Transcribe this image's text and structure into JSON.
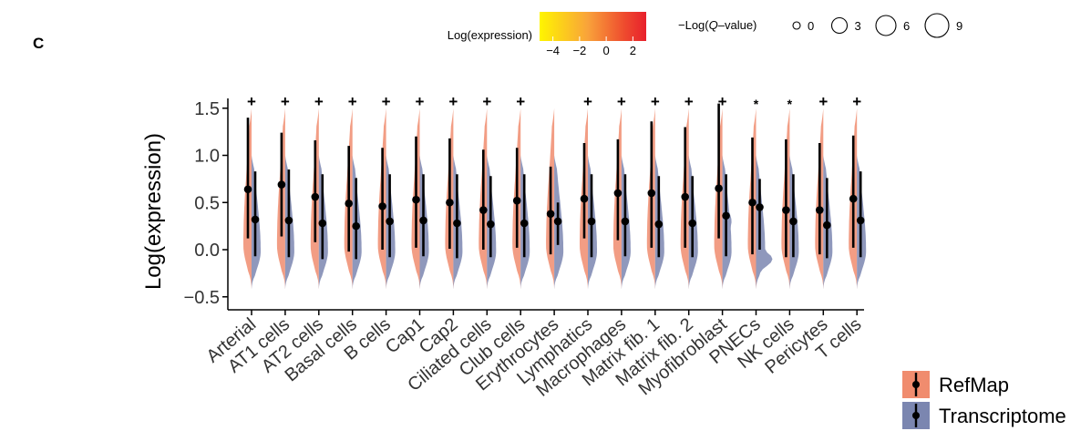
{
  "panel_label": "C",
  "chart_data": {
    "type": "violin",
    "ylabel": "Log(expression)",
    "ylim": [
      -0.6,
      1.65
    ],
    "yticks": [
      "−0.5",
      "0.0",
      "0.5",
      "1.0",
      "1.5"
    ],
    "ytick_values": [
      -0.5,
      0.0,
      0.5,
      1.0,
      1.5
    ],
    "categories": [
      "Arterial",
      "AT1 cells",
      "AT2 cells",
      "Basal cells",
      "B cells",
      "Cap1",
      "Cap2",
      "Ciliated cells",
      "Club cells",
      "Erythrocytes",
      "Lymphatics",
      "Macrophages",
      "Matrix fib. 1",
      "Matrix fib. 2",
      "Myofibroblast",
      "PNECs",
      "NK cells",
      "Pericytes",
      "T cells"
    ],
    "significance": [
      "+",
      "+",
      "+",
      "+",
      "+",
      "+",
      "+",
      "+",
      "+",
      "",
      "+",
      "+",
      "+",
      "+",
      "+",
      "*",
      "*",
      "+",
      "+"
    ],
    "series": [
      {
        "name": "RefMap",
        "color": "#f08c6e",
        "means": [
          0.64,
          0.69,
          0.56,
          0.49,
          0.46,
          0.53,
          0.5,
          0.42,
          0.52,
          0.38,
          0.54,
          0.6,
          0.6,
          0.56,
          0.65,
          0.5,
          0.42,
          0.42,
          0.54
        ],
        "upper": [
          1.4,
          1.24,
          1.16,
          1.1,
          1.08,
          1.2,
          1.18,
          1.06,
          1.08,
          0.88,
          1.13,
          1.17,
          1.36,
          1.3,
          1.55,
          1.19,
          1.17,
          1.13,
          1.21
        ],
        "lower": [
          0.12,
          0.14,
          0.08,
          -0.02,
          0.0,
          0.02,
          0.01,
          0.0,
          0.02,
          -0.05,
          0.12,
          0.1,
          0.02,
          0.02,
          0.12,
          -0.05,
          -0.08,
          -0.05,
          0.02
        ]
      },
      {
        "name": "Transcriptome",
        "color": "#7b86b0",
        "means": [
          0.32,
          0.31,
          0.28,
          0.25,
          0.3,
          0.31,
          0.28,
          0.27,
          0.28,
          0.3,
          0.3,
          0.3,
          0.27,
          0.28,
          0.36,
          0.45,
          0.3,
          0.26,
          0.31
        ],
        "upper": [
          0.83,
          0.85,
          0.8,
          0.76,
          0.8,
          0.8,
          0.8,
          0.78,
          0.8,
          0.5,
          0.8,
          0.8,
          0.78,
          0.78,
          0.8,
          0.75,
          0.8,
          0.76,
          0.83
        ],
        "lower": [
          -0.07,
          -0.08,
          -0.1,
          -0.1,
          -0.08,
          -0.07,
          -0.09,
          -0.08,
          -0.08,
          0.05,
          -0.08,
          -0.07,
          -0.08,
          -0.08,
          -0.07,
          0.0,
          -0.08,
          -0.09,
          -0.08
        ]
      }
    ],
    "color_legend": {
      "title": "Log(expression)",
      "ticks": [
        "−4",
        "−2",
        "0",
        "2"
      ],
      "tick_values": [
        -4,
        -2,
        0,
        2
      ],
      "range": [
        -5,
        3
      ],
      "colors": [
        "#fff500",
        "#f9a33a",
        "#ee4a2e",
        "#e8202c"
      ]
    },
    "size_legend": {
      "title_prefix": "−Log(",
      "title_italic": "Q",
      "title_suffix": "–value)",
      "values": [
        "0",
        "3",
        "6",
        "9"
      ]
    },
    "legend": {
      "placement": "bottom-right",
      "entries": [
        "RefMap",
        "Transcriptome"
      ]
    }
  }
}
